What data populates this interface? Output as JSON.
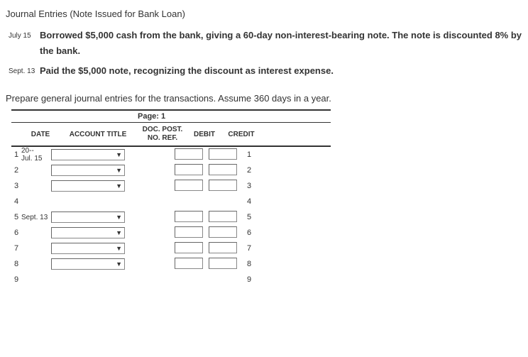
{
  "title": "Journal Entries (Note Issued for Bank Loan)",
  "transactions": [
    {
      "date": "July 15",
      "text": "Borrowed $5,000 cash from the bank, giving a 60-day non-interest-bearing note. The note is discounted 8% by the bank."
    },
    {
      "date": "Sept. 13",
      "text": "Paid the $5,000 note, recognizing the discount as interest expense."
    }
  ],
  "instruction": "Prepare general journal entries for the transactions. Assume 360 days in a year.",
  "journal": {
    "page_label": "Page: 1",
    "headers": {
      "date": "DATE",
      "account_title": "ACCOUNT TITLE",
      "doc_post": "DOC. POST.",
      "no_ref": "NO.  REF.",
      "debit": "DEBIT",
      "credit": "CREDIT"
    },
    "rows": [
      {
        "n": "1",
        "date": "20--\nJul. 15",
        "dd": true,
        "debit": true,
        "credit": true,
        "rn": "1"
      },
      {
        "n": "2",
        "date": "",
        "dd": true,
        "debit": true,
        "credit": true,
        "rn": "2"
      },
      {
        "n": "3",
        "date": "",
        "dd": true,
        "debit": true,
        "credit": true,
        "rn": "3"
      },
      {
        "n": "4",
        "date": "",
        "dd": false,
        "debit": false,
        "credit": false,
        "rn": "4"
      },
      {
        "n": "5",
        "date": "Sept. 13",
        "dd": true,
        "debit": true,
        "credit": true,
        "rn": "5"
      },
      {
        "n": "6",
        "date": "",
        "dd": true,
        "debit": true,
        "credit": true,
        "rn": "6"
      },
      {
        "n": "7",
        "date": "",
        "dd": true,
        "debit": true,
        "credit": true,
        "rn": "7"
      },
      {
        "n": "8",
        "date": "",
        "dd": true,
        "debit": true,
        "credit": true,
        "rn": "8"
      },
      {
        "n": "9",
        "date": "",
        "dd": false,
        "debit": false,
        "credit": false,
        "rn": "9"
      }
    ]
  },
  "style": {
    "body_font_size": 13,
    "header_font_size": 10,
    "row_font_size": 11,
    "text_color": "#333333",
    "border_color": "#333333",
    "input_border": "#888888",
    "background": "#ffffff"
  }
}
